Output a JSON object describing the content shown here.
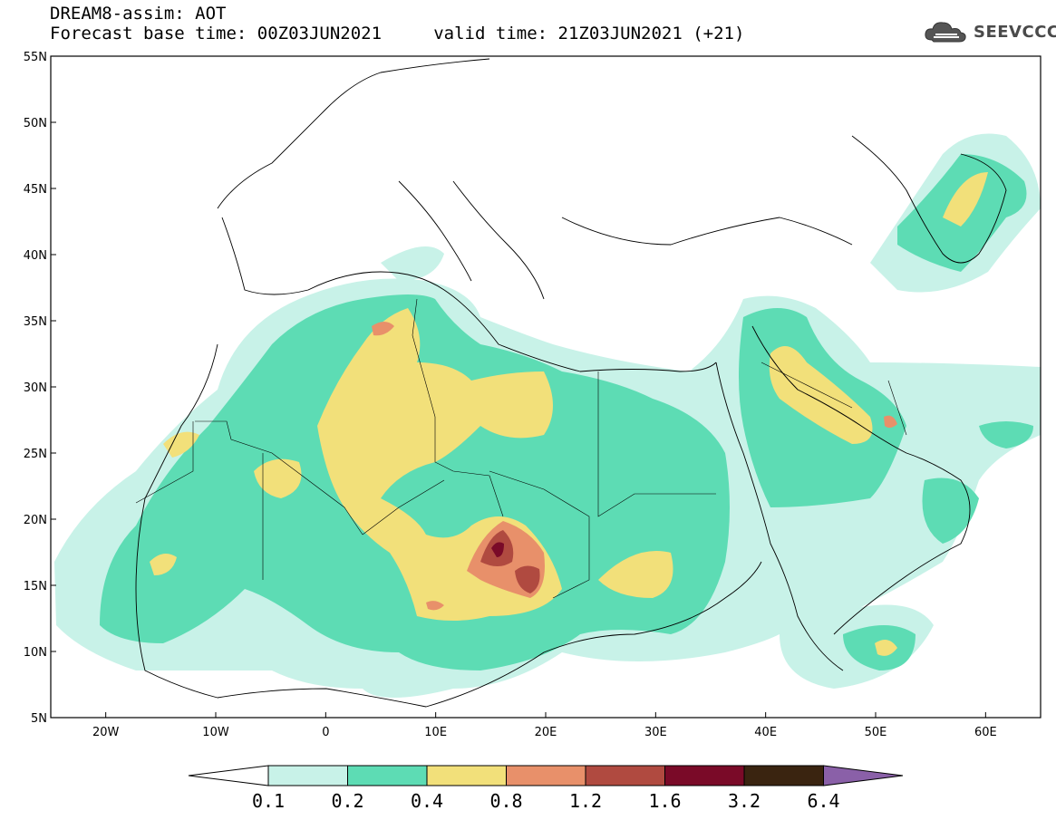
{
  "header": {
    "line1": "DREAM8-assim: AOT",
    "line2": "Forecast base time: 00Z03JUN2021     valid time: 21Z03JUN2021 (+21)"
  },
  "logo": {
    "text": "SEEVCCC",
    "icon": "cloud-logo-icon"
  },
  "map": {
    "lat_labels": [
      "55N",
      "50N",
      "45N",
      "40N",
      "35N",
      "30N",
      "25N",
      "20N",
      "15N",
      "10N",
      "5N"
    ],
    "lon_labels": [
      "20W",
      "10W",
      "0",
      "10E",
      "20E",
      "30E",
      "40E",
      "50E",
      "60E"
    ],
    "lat_range": [
      5,
      55
    ],
    "lon_range": [
      -25,
      65
    ]
  },
  "colorbar": {
    "labels": [
      "0.1",
      "0.2",
      "0.4",
      "0.8",
      "1.2",
      "1.6",
      "3.2",
      "6.4"
    ],
    "colors": [
      "#ffffff",
      "#c8f2e8",
      "#5ddcb4",
      "#f2e07a",
      "#e8906a",
      "#b04a40",
      "#7a0a28",
      "#3a2410",
      "#8a60a8"
    ]
  }
}
